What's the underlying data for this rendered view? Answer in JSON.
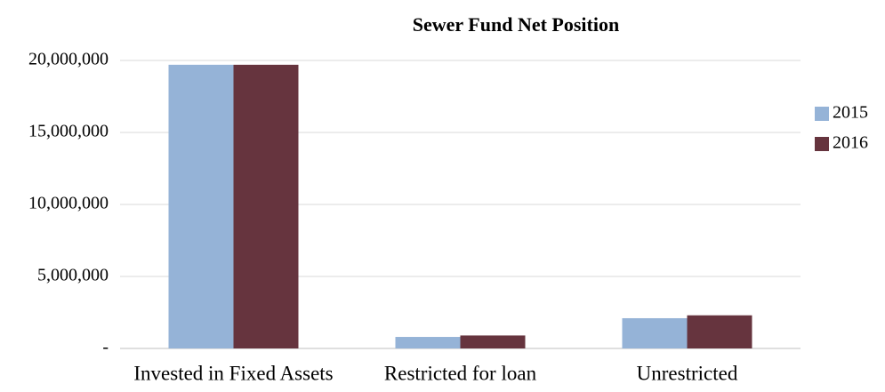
{
  "chart_data": {
    "type": "bar",
    "title": "Sewer Fund Net Position",
    "categories": [
      "Invested in Fixed Assets",
      "Restricted for loan",
      "Unrestricted"
    ],
    "series": [
      {
        "name": "2015",
        "color": "#95b3d7",
        "values": [
          19700000,
          800000,
          2100000
        ]
      },
      {
        "name": "2016",
        "color": "#66343e",
        "values": [
          19700000,
          900000,
          2300000
        ]
      }
    ],
    "ylim": [
      0,
      20000000
    ],
    "yticks": [
      {
        "value": 0,
        "label": "-"
      },
      {
        "value": 5000000,
        "label": "5,000,000"
      },
      {
        "value": 10000000,
        "label": "10,000,000"
      },
      {
        "value": 15000000,
        "label": "15,000,000"
      },
      {
        "value": 20000000,
        "label": "20,000,000"
      }
    ],
    "grid": true,
    "legend": "upper right"
  }
}
